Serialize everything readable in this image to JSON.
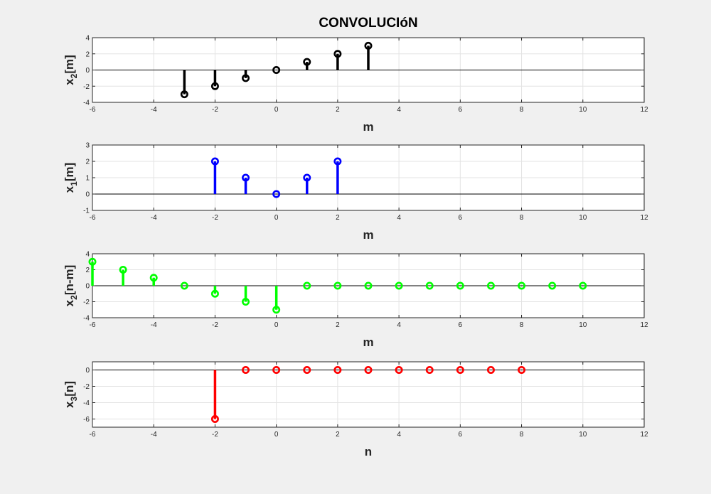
{
  "figure": {
    "title": "CONVOLUCIóN",
    "background": "#f0f0f0"
  },
  "chart_data": [
    {
      "type": "stem",
      "ylabel": {
        "base": "x",
        "sub": "2",
        "rest": "[m]"
      },
      "xlabel": "m",
      "xlim": [
        -6,
        12
      ],
      "ylim": [
        -4,
        4
      ],
      "xticks": [
        -6,
        -4,
        -2,
        0,
        2,
        4,
        6,
        8,
        10,
        12
      ],
      "yticks": [
        -4,
        -2,
        0,
        2,
        4
      ],
      "grid": true,
      "color": "#000000",
      "x": [
        -3,
        -2,
        -1,
        0,
        1,
        2,
        3
      ],
      "y": [
        -3,
        -2,
        -1,
        0,
        1,
        2,
        3
      ]
    },
    {
      "type": "stem",
      "ylabel": {
        "base": "x",
        "sub": "1",
        "rest": "[m]"
      },
      "xlabel": "m",
      "xlim": [
        -6,
        12
      ],
      "ylim": [
        -1,
        3
      ],
      "xticks": [
        -6,
        -4,
        -2,
        0,
        2,
        4,
        6,
        8,
        10,
        12
      ],
      "yticks": [
        -1,
        0,
        1,
        2,
        3
      ],
      "grid": true,
      "color": "#0000ff",
      "x": [
        -2,
        -1,
        0,
        1,
        2
      ],
      "y": [
        2,
        1,
        0,
        1,
        2
      ]
    },
    {
      "type": "stem",
      "ylabel": {
        "base": "x",
        "sub": "2",
        "rest": "[n-m]"
      },
      "xlabel": "m",
      "xlim": [
        -6,
        12
      ],
      "ylim": [
        -4,
        4
      ],
      "xticks": [
        -6,
        -4,
        -2,
        0,
        2,
        4,
        6,
        8,
        10,
        12
      ],
      "yticks": [
        -4,
        -2,
        0,
        2,
        4
      ],
      "grid": true,
      "color": "#00ff00",
      "x": [
        -6,
        -5,
        -4,
        -3,
        -2,
        -1,
        0,
        1,
        2,
        3,
        4,
        5,
        6,
        7,
        8,
        9,
        10
      ],
      "y": [
        3,
        2,
        1,
        0,
        -1,
        -2,
        -3,
        0,
        0,
        0,
        0,
        0,
        0,
        0,
        0,
        0,
        0
      ]
    },
    {
      "type": "stem",
      "ylabel": {
        "base": "x",
        "sub": "3",
        "rest": "[n]"
      },
      "xlabel": "n",
      "xlim": [
        -6,
        12
      ],
      "ylim": [
        -7,
        1
      ],
      "xticks": [
        -6,
        -4,
        -2,
        0,
        2,
        4,
        6,
        8,
        10,
        12
      ],
      "yticks": [
        -6,
        -4,
        -2,
        0
      ],
      "grid": true,
      "color": "#ff0000",
      "x": [
        -2,
        -1,
        0,
        1,
        2,
        3,
        4,
        5,
        6,
        7,
        8
      ],
      "y": [
        -6,
        0,
        0,
        0,
        0,
        0,
        0,
        0,
        0,
        0,
        0
      ]
    }
  ]
}
